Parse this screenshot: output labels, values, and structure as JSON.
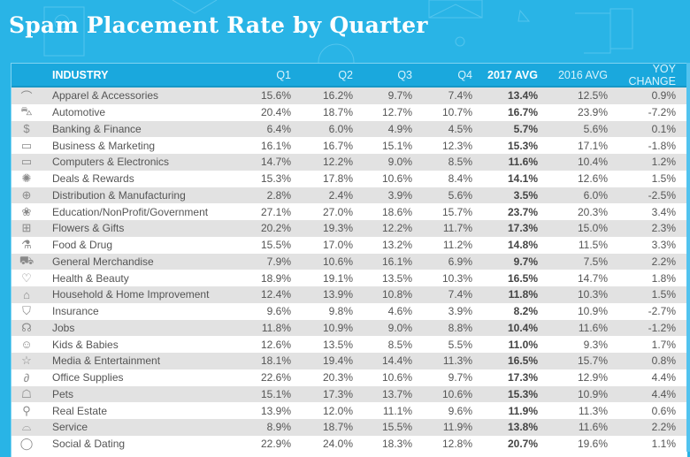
{
  "chart_data": {
    "type": "table",
    "title": "Spam Placement Rate by Quarter",
    "columns": [
      "INDUSTRY",
      "Q1",
      "Q2",
      "Q3",
      "Q4",
      "2017 AVG",
      "2016 AVG",
      "YOY CHANGE"
    ],
    "rows": [
      {
        "icon": "hanger-icon",
        "industry": "Apparel & Accessories",
        "q1": "15.6%",
        "q2": "16.2%",
        "q3": "9.7%",
        "q4": "7.4%",
        "avg2017": "13.4%",
        "avg2016": "12.5%",
        "yoy": "0.9%"
      },
      {
        "icon": "car-icon",
        "industry": "Automotive",
        "q1": "20.4%",
        "q2": "18.7%",
        "q3": "12.7%",
        "q4": "10.7%",
        "avg2017": "16.7%",
        "avg2016": "23.9%",
        "yoy": "-7.2%"
      },
      {
        "icon": "dollar-icon",
        "industry": "Banking & Finance",
        "q1": "6.4%",
        "q2": "6.0%",
        "q3": "4.9%",
        "q4": "4.5%",
        "avg2017": "5.7%",
        "avg2016": "5.6%",
        "yoy": "0.1%"
      },
      {
        "icon": "presentation-board-icon",
        "industry": "Business & Marketing",
        "q1": "16.1%",
        "q2": "16.7%",
        "q3": "15.1%",
        "q4": "12.3%",
        "avg2017": "15.3%",
        "avg2016": "17.1%",
        "yoy": "-1.8%"
      },
      {
        "icon": "monitor-icon",
        "industry": "Computers & Electronics",
        "q1": "14.7%",
        "q2": "12.2%",
        "q3": "9.0%",
        "q4": "8.5%",
        "avg2017": "11.6%",
        "avg2016": "10.4%",
        "yoy": "1.2%"
      },
      {
        "icon": "badge-icon",
        "industry": "Deals & Rewards",
        "q1": "15.3%",
        "q2": "17.8%",
        "q3": "10.6%",
        "q4": "8.4%",
        "avg2017": "14.1%",
        "avg2016": "12.6%",
        "yoy": "1.5%"
      },
      {
        "icon": "globe-icon",
        "industry": "Distribution & Manufacturing",
        "q1": "2.8%",
        "q2": "2.4%",
        "q3": "3.9%",
        "q4": "5.6%",
        "avg2017": "3.5%",
        "avg2016": "6.0%",
        "yoy": "-2.5%"
      },
      {
        "icon": "circles-icon",
        "industry": "Education/NonProfit/Government",
        "q1": "27.1%",
        "q2": "27.0%",
        "q3": "18.6%",
        "q4": "15.7%",
        "avg2017": "23.7%",
        "avg2016": "20.3%",
        "yoy": "3.4%"
      },
      {
        "icon": "gift-icon",
        "industry": "Flowers & Gifts",
        "q1": "20.2%",
        "q2": "19.3%",
        "q3": "12.2%",
        "q4": "11.7%",
        "avg2017": "17.3%",
        "avg2016": "15.0%",
        "yoy": "2.3%"
      },
      {
        "icon": "flask-icon",
        "industry": "Food & Drug",
        "q1": "15.5%",
        "q2": "17.0%",
        "q3": "13.2%",
        "q4": "11.2%",
        "avg2017": "14.8%",
        "avg2016": "11.5%",
        "yoy": "3.3%"
      },
      {
        "icon": "cart-icon",
        "industry": "General Merchandise",
        "q1": "7.9%",
        "q2": "10.6%",
        "q3": "16.1%",
        "q4": "6.9%",
        "avg2017": "9.7%",
        "avg2016": "7.5%",
        "yoy": "2.2%"
      },
      {
        "icon": "heart-pulse-icon",
        "industry": "Health & Beauty",
        "q1": "18.9%",
        "q2": "19.1%",
        "q3": "13.5%",
        "q4": "10.3%",
        "avg2017": "16.5%",
        "avg2016": "14.7%",
        "yoy": "1.8%"
      },
      {
        "icon": "house-icon",
        "industry": "Household & Home Improvement",
        "q1": "12.4%",
        "q2": "13.9%",
        "q3": "10.8%",
        "q4": "7.4%",
        "avg2017": "11.8%",
        "avg2016": "10.3%",
        "yoy": "1.5%"
      },
      {
        "icon": "shield-icon",
        "industry": "Insurance",
        "q1": "9.6%",
        "q2": "9.8%",
        "q3": "4.6%",
        "q4": "3.9%",
        "avg2017": "8.2%",
        "avg2016": "10.9%",
        "yoy": "-2.7%"
      },
      {
        "icon": "people-icon",
        "industry": "Jobs",
        "q1": "11.8%",
        "q2": "10.9%",
        "q3": "9.0%",
        "q4": "8.8%",
        "avg2017": "10.4%",
        "avg2016": "11.6%",
        "yoy": "-1.2%"
      },
      {
        "icon": "smiley-icon",
        "industry": "Kids & Babies",
        "q1": "12.6%",
        "q2": "13.5%",
        "q3": "8.5%",
        "q4": "5.5%",
        "avg2017": "11.0%",
        "avg2016": "9.3%",
        "yoy": "1.7%"
      },
      {
        "icon": "star-icon",
        "industry": "Media & Entertainment",
        "q1": "18.1%",
        "q2": "19.4%",
        "q3": "14.4%",
        "q4": "11.3%",
        "avg2017": "16.5%",
        "avg2016": "15.7%",
        "yoy": "0.8%"
      },
      {
        "icon": "paperclip-icon",
        "industry": "Office Supplies",
        "q1": "22.6%",
        "q2": "20.3%",
        "q3": "10.6%",
        "q4": "9.7%",
        "avg2017": "17.3%",
        "avg2016": "12.9%",
        "yoy": "4.4%"
      },
      {
        "icon": "dog-icon",
        "industry": "Pets",
        "q1": "15.1%",
        "q2": "17.3%",
        "q3": "13.7%",
        "q4": "10.6%",
        "avg2017": "15.3%",
        "avg2016": "10.9%",
        "yoy": "4.4%"
      },
      {
        "icon": "map-pin-icon",
        "industry": "Real Estate",
        "q1": "13.9%",
        "q2": "12.0%",
        "q3": "11.1%",
        "q4": "9.6%",
        "avg2017": "11.9%",
        "avg2016": "11.3%",
        "yoy": "0.6%"
      },
      {
        "icon": "service-bell-icon",
        "industry": "Service",
        "q1": "8.9%",
        "q2": "18.7%",
        "q3": "15.5%",
        "q4": "11.9%",
        "avg2017": "13.8%",
        "avg2016": "11.6%",
        "yoy": "2.2%"
      },
      {
        "icon": "speech-bubble-icon",
        "industry": "Social & Dating",
        "q1": "22.9%",
        "q2": "24.0%",
        "q3": "18.3%",
        "q4": "12.8%",
        "avg2017": "20.7%",
        "avg2016": "19.6%",
        "yoy": "1.1%"
      }
    ]
  },
  "colors": {
    "background": "#29b4e6",
    "header": "#1aa8dd",
    "row_alt": "#e2e2e2",
    "row": "#ffffff",
    "text": "#555555"
  },
  "icon_glyphs": {
    "hanger-icon": "⌒",
    "car-icon": "⛍",
    "dollar-icon": "$",
    "presentation-board-icon": "▭",
    "monitor-icon": "▭",
    "badge-icon": "✺",
    "globe-icon": "⊕",
    "circles-icon": "❀",
    "gift-icon": "⊞",
    "flask-icon": "⚗",
    "cart-icon": "⛟",
    "heart-pulse-icon": "♡",
    "house-icon": "⌂",
    "shield-icon": "⛉",
    "people-icon": "☊",
    "smiley-icon": "☺",
    "star-icon": "☆",
    "paperclip-icon": "∂",
    "dog-icon": "☖",
    "map-pin-icon": "⚲",
    "service-bell-icon": "⌓",
    "speech-bubble-icon": "◯"
  }
}
